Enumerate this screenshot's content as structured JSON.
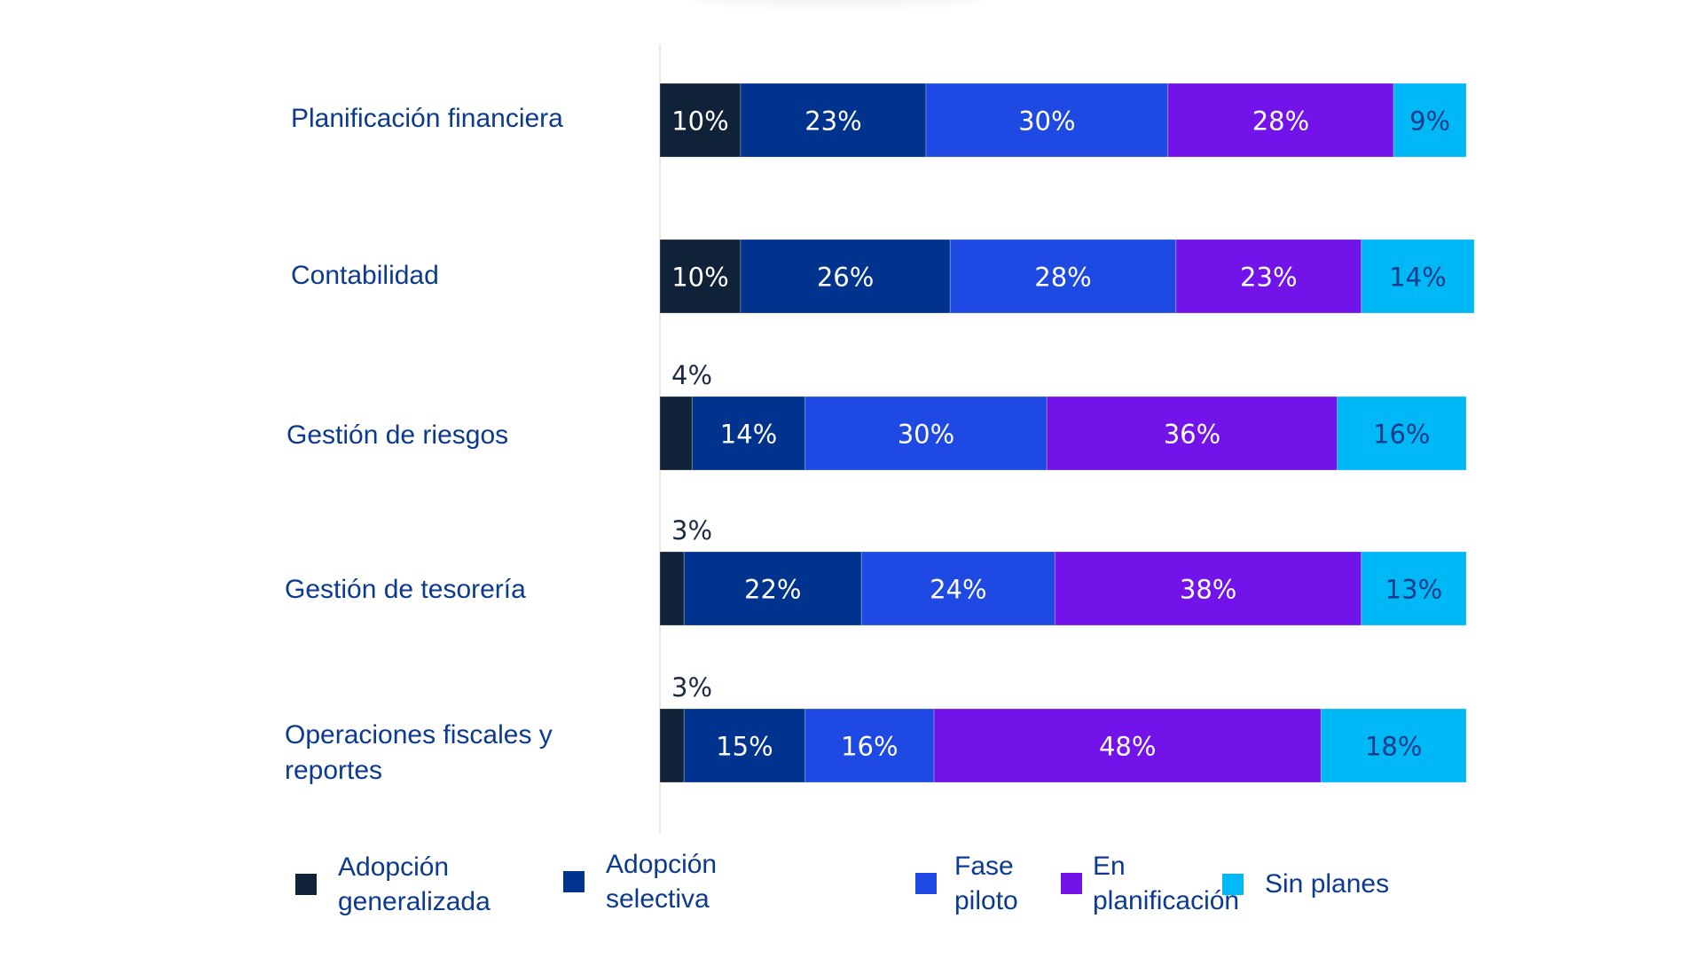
{
  "chart_data": {
    "type": "bar",
    "orientation": "horizontal",
    "stacked": true,
    "title": "",
    "xlabel": "",
    "ylabel": "",
    "xlim": [
      0,
      100
    ],
    "grid": false,
    "legend_position": "bottom",
    "categories": [
      "Planificación financiera",
      "Contabilidad",
      "Gestión de riesgos",
      "Gestión de tesorería",
      "Operaciones fiscales y reportes"
    ],
    "series": [
      {
        "name": "Adopción generalizada",
        "color": "#0f2238",
        "label_color": "#ffffff",
        "values": [
          10,
          10,
          4,
          3,
          3
        ]
      },
      {
        "name": "Adopción selectiva",
        "color": "#00338d",
        "label_color": "#ffffff",
        "values": [
          23,
          26,
          14,
          22,
          15
        ]
      },
      {
        "name": "Fase piloto",
        "color": "#1e49e2",
        "label_color": "#ffffff",
        "values": [
          30,
          28,
          30,
          24,
          16
        ]
      },
      {
        "name": "En planificación",
        "color": "#7213ea",
        "label_color": "#ffffff",
        "values": [
          28,
          23,
          36,
          38,
          48
        ]
      },
      {
        "name": "Sin planes",
        "color": "#00b8f5",
        "label_color": "#1b3a8a",
        "values": [
          9,
          14,
          16,
          13,
          18
        ]
      }
    ],
    "value_suffix": "%"
  },
  "category_labels": [
    "Planificación financiera",
    "Contabilidad",
    "Gestión de riesgos",
    "Gestión de tesorería",
    "Operaciones fiscales y\nreportes"
  ],
  "legend": [
    {
      "label": "Adopción\ngeneralizada",
      "color": "#0f2238"
    },
    {
      "label": "Adopción\nselectiva",
      "color": "#00338d"
    },
    {
      "label": "Fase\npiloto",
      "color": "#1e49e2"
    },
    {
      "label": "En\nplanificación",
      "color": "#7213ea"
    },
    {
      "label": "Sin planes",
      "color": "#00b8f5"
    }
  ],
  "outside_label_color": "#1c2b45"
}
